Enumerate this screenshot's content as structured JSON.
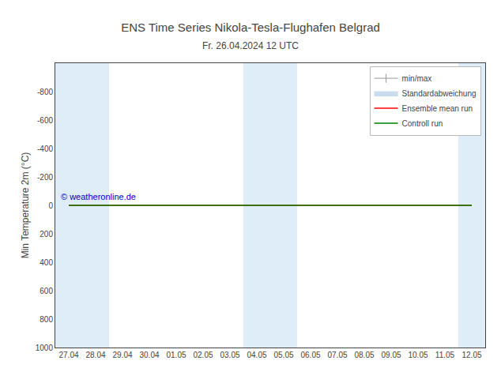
{
  "chart_data": {
    "type": "line",
    "title": "ENS Time Series Nikola-Tesla-Flughafen Belgrad",
    "subtitle": "Fr. 26.04.2024 12 UTC",
    "y_label": "Min Temperature 2m (°C)",
    "categories": [
      "27.04",
      "28.04",
      "29.04",
      "30.04",
      "01.05",
      "02.05",
      "03.05",
      "04.05",
      "05.05",
      "06.05",
      "07.05",
      "08.05",
      "09.05",
      "10.05",
      "11.05",
      "12.05"
    ],
    "series": [
      {
        "name": "min/max",
        "color": "#999999",
        "marker": "vline",
        "values": [
          null,
          null,
          null,
          null,
          null,
          null,
          null,
          null,
          null,
          null,
          null,
          null,
          null,
          null,
          null,
          null
        ]
      },
      {
        "name": "Standardabweichung",
        "type": "area",
        "color": "#c8dced",
        "values": [
          null,
          null,
          null,
          null,
          null,
          null,
          null,
          null,
          null,
          null,
          null,
          null,
          null,
          null,
          null,
          null
        ]
      },
      {
        "name": "Ensemble mean run",
        "color": "#ff0000",
        "values": [
          0,
          0,
          0,
          0,
          0,
          0,
          0,
          0,
          0,
          0,
          0,
          0,
          0,
          0,
          0,
          0
        ]
      },
      {
        "name": "Controll run",
        "color": "#008000",
        "values": [
          0,
          0,
          0,
          0,
          0,
          0,
          0,
          0,
          0,
          0,
          0,
          0,
          0,
          0,
          0,
          0
        ]
      }
    ],
    "ylim": [
      1000,
      -1000
    ],
    "yticks": [
      -800,
      -600,
      -400,
      -200,
      0,
      200,
      400,
      600,
      800,
      1000
    ],
    "shaded": {
      "spans": [
        [
          0,
          1
        ],
        [
          1,
          2
        ],
        [
          7,
          8
        ],
        [
          8,
          9
        ],
        [
          15,
          16
        ]
      ],
      "color": "#deedf8"
    },
    "annotations": [
      {
        "text": "© weatheronline.de",
        "color": "#0000cc"
      }
    ],
    "grid": false,
    "legend": "upper right"
  }
}
